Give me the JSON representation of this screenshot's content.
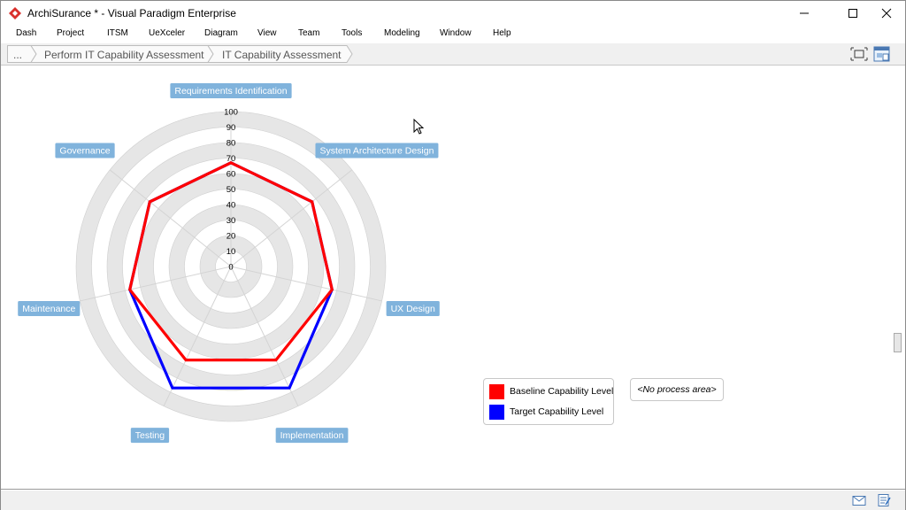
{
  "window": {
    "title": "ArchiSurance * - Visual Paradigm Enterprise",
    "controls": [
      "minimize",
      "maximize",
      "close"
    ]
  },
  "menu": {
    "items": [
      "Dash",
      "Project",
      "ITSM",
      "UeXceler",
      "Diagram",
      "View",
      "Team",
      "Tools",
      "Modeling",
      "Window",
      "Help"
    ]
  },
  "breadcrumb": {
    "more": "...",
    "items": [
      "Perform IT Capability Assessment",
      "IT Capability Assessment"
    ]
  },
  "chart_data": {
    "type": "radar",
    "axes": [
      "Requirements Identification",
      "System Architecture Design",
      "UX Design",
      "Implementation",
      "Testing",
      "Maintenance",
      "Governance"
    ],
    "ticks": [
      "0",
      "10",
      "20",
      "30",
      "40",
      "50",
      "60",
      "70",
      "80",
      "90",
      "100"
    ],
    "range": [
      0,
      100
    ],
    "series": [
      {
        "name": "Baseline Capability Level",
        "color": "#ff0000",
        "values": [
          67,
          67,
          67,
          67,
          67,
          67,
          67
        ]
      },
      {
        "name": "Target Capability Level",
        "color": "#0000ff",
        "values": [
          67,
          67,
          67,
          87,
          87,
          67,
          67
        ]
      }
    ],
    "legend_position": "bottom-right"
  },
  "process_area": {
    "label": "<No process area>"
  },
  "colors": {
    "axis_label_bg": "#80b3dc",
    "ring_fill": "#e6e6e6"
  }
}
